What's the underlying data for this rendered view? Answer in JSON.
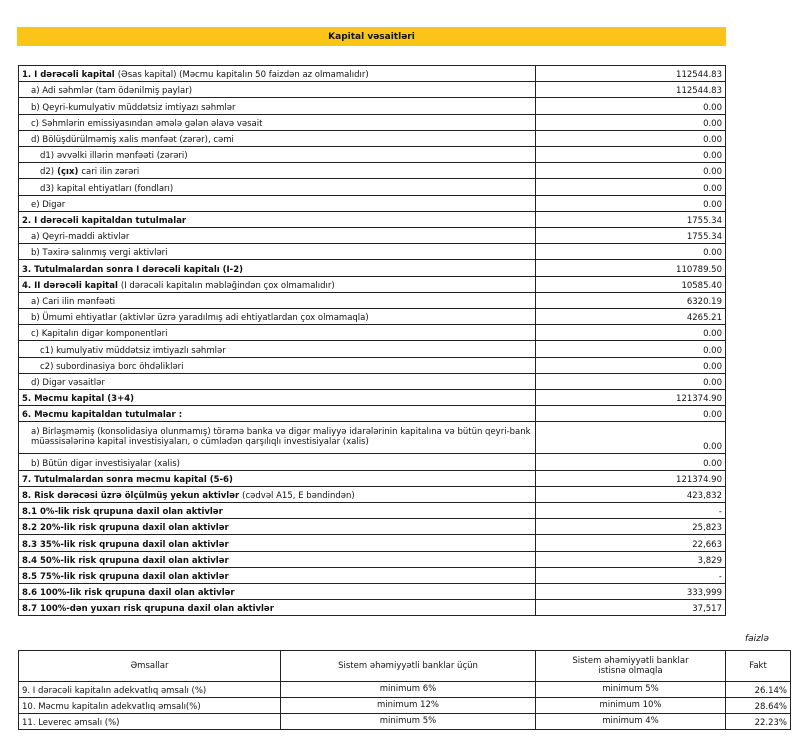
{
  "header": {
    "title": "Kapital vəsaitləri"
  },
  "capital_table": {
    "rows": [
      {
        "parts": [
          {
            "text": "1. I dərəcəli kapital",
            "bold": true
          },
          {
            "text": "(Əsas kapital) (Məcmu kapitalın 50 faizdən az olmamalıdır)",
            "bold": false
          }
        ],
        "value": "112544.83"
      },
      {
        "parts": [
          {
            "text": "a) Adi səhmlər (tam ödənilmiş paylar)",
            "bold": false
          }
        ],
        "value": "112544.83"
      },
      {
        "parts": [
          {
            "text": "b) Qeyri-kumulyativ müddətsiz imtiyazı səhmlər",
            "bold": false
          }
        ],
        "value": "0.00"
      },
      {
        "parts": [
          {
            "text": "c) Səhmlərin emissiyasından əmələ gələn əlavə vəsait",
            "bold": false
          }
        ],
        "value": "0.00"
      },
      {
        "parts": [
          {
            "text": "d) Bölüşdürülməmiş xalis mənfəət (zərər), cəmi",
            "bold": false
          }
        ],
        "value": "0.00"
      },
      {
        "parts": [
          {
            "text": "d1) əvvəlki illərin mənfəəti (zərəri)",
            "bold": false
          }
        ],
        "value": "0.00"
      },
      {
        "parts": [
          {
            "text": "d2)",
            "bold": false
          },
          {
            "text": "(çıx)",
            "bold": true
          },
          {
            "text": "cari ilin zərəri",
            "bold": false
          }
        ],
        "value": "0.00"
      },
      {
        "parts": [
          {
            "text": "d3) kapital ehtiyatları (fondları)",
            "bold": false
          }
        ],
        "value": "0.00"
      },
      {
        "parts": [
          {
            "text": "e) Digər",
            "bold": false
          }
        ],
        "value": "0.00"
      },
      {
        "parts": [
          {
            "text": "2. I dərəcəli kapitaldan tutulmalar",
            "bold": true
          }
        ],
        "value": "1755.34"
      },
      {
        "parts": [
          {
            "text": "a) Qeyri-maddi aktivlər",
            "bold": false
          }
        ],
        "value": "1755.34"
      },
      {
        "parts": [
          {
            "text": "b) Təxirə salınmış vergi aktivləri",
            "bold": false
          }
        ],
        "value": "0.00"
      },
      {
        "parts": [
          {
            "text": "3. Tutulmalardan  sonra I dərəcəli kapitalı (I-2)",
            "bold": true
          }
        ],
        "value": "110789.50"
      },
      {
        "parts": [
          {
            "text": "4. II dərəcəli kapital",
            "bold": true
          },
          {
            "text": "(I dərəcəli kapitalın məbləğindən çox olmamalıdır)",
            "bold": false
          }
        ],
        "value": "10585.40"
      },
      {
        "parts": [
          {
            "text": "a) Cari ilin mənfəəti",
            "bold": false
          }
        ],
        "value": "6320.19"
      },
      {
        "parts": [
          {
            "text": "b) Ümumi ehtiyatlar (aktivlər üzrə yaradılmış adi ehtiyatlardan çox olmamaqla)",
            "bold": false
          }
        ],
        "value": "4265.21"
      },
      {
        "parts": [
          {
            "text": "c) Kapitalın digər komponentləri",
            "bold": false
          }
        ],
        "value": "0.00"
      },
      {
        "parts": [
          {
            "text": "c1) kumulyativ müddətsiz imtiyazlı səhmlər",
            "bold": false
          }
        ],
        "value": "0.00"
      },
      {
        "parts": [
          {
            "text": "c2) subordinasiya borc öhdəlikləri",
            "bold": false
          }
        ],
        "value": "0.00"
      },
      {
        "parts": [
          {
            "text": "d) Digər vəsaitlər",
            "bold": false
          }
        ],
        "value": "0.00"
      },
      {
        "parts": [
          {
            "text": "5. Məcmu kapital (3+4)",
            "bold": true
          }
        ],
        "value": "121374.90"
      },
      {
        "parts": [
          {
            "text": "6. Məcmu kapitaldan tutulmalar :",
            "bold": true
          }
        ],
        "value": "0.00"
      },
      {
        "parts": [
          {
            "text": "a) Birləşməmiş (konsolidasiya olunmamış) törəmə banka və digər maliyyə idarələrinin kapitalına və bütün qeyri-bank müəssisələrinə kapital investisiyaları, o cümlədən qarşılıqlı investisiyalar (xalis)",
            "bold": false
          }
        ],
        "value": "0.00"
      },
      {
        "parts": [
          {
            "text": "b) Bütün digər investisiyalar (xalis)",
            "bold": false
          }
        ],
        "value": "0.00"
      },
      {
        "parts": [
          {
            "text": "7. Tutulmalardan  sonra məcmu kapital (5-6)",
            "bold": true
          }
        ],
        "value": "121374.90"
      },
      {
        "parts": [
          {
            "text": "8. Risk dərəcəsi üzrə ölçülmüş yekun aktivlər",
            "bold": true
          },
          {
            "text": "(cədvəl A15, E bəndindən)",
            "bold": false
          }
        ],
        "value": "423,832"
      },
      {
        "parts": [
          {
            "text": "8.1 0%-lik risk qrupuna daxil olan aktivlər",
            "bold": true
          }
        ],
        "value": "-"
      },
      {
        "parts": [
          {
            "text": "8.2 20%-lik risk qrupuna daxil olan aktivlər",
            "bold": true
          }
        ],
        "value": "25,823"
      },
      {
        "parts": [
          {
            "text": "8.3 35%-lik risk qrupuna daxil olan aktivlər",
            "bold": true
          }
        ],
        "value": "22,663"
      },
      {
        "parts": [
          {
            "text": "8.4 50%-lik risk qrupuna daxil olan aktivlər",
            "bold": true
          }
        ],
        "value": "3,829"
      },
      {
        "parts": [
          {
            "text": "8.5 75%-lik risk qrupuna daxil olan aktivlər",
            "bold": true
          }
        ],
        "value": "-"
      },
      {
        "parts": [
          {
            "text": "8.6 100%-lik risk qrupuna daxil olan aktivlər",
            "bold": true
          }
        ],
        "value": "333,999"
      },
      {
        "parts": [
          {
            "text": "8.7 100%-dən yuxarı risk qrupuna daxil olan aktivlər",
            "bold": true
          }
        ],
        "value": "37,517"
      }
    ]
  },
  "ratio_table": {
    "unit": "faizlə",
    "header": [
      "Əmsallar",
      "Sistem əhəmiyyətli banklar üçün",
      "Sistem əhəmiyyətli banklar istisnə olmaqla",
      "Fakt"
    ],
    "rows": [
      [
        "9. I dərəcəli kapitalın adekvatlıq əmsalı (%)",
        "minimum 6%",
        "minimum 5%",
        "26.14%"
      ],
      [
        "10. Məcmu kapitalın adekvatlıq əmsalı(%)",
        "minimum 12%",
        "minimum 10%",
        "28.64%"
      ],
      [
        "11. Leverec əmsalı (%)",
        "minimum 5%",
        "minimum 4%",
        "22.23%"
      ]
    ]
  }
}
